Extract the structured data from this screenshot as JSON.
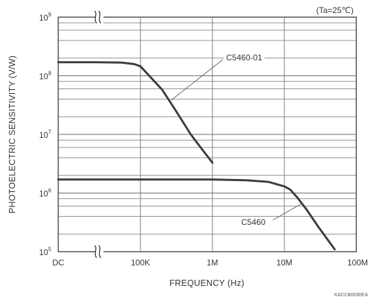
{
  "chart_data": {
    "type": "line",
    "xlabel": "FREQUENCY (Hz)",
    "ylabel": "PHOTOELECTRIC SENSITIVITY (V/W)",
    "condition": "(Ta=25℃)",
    "figure_code": "KACCB0030EA",
    "x_scale": "log",
    "y_scale": "log",
    "xlim": [
      "DC",
      100000000
    ],
    "ylim": [
      100000,
      1000000000
    ],
    "x_break": "between DC and 100K (axis break marks shown at the top and bottom edges)",
    "grid": true,
    "x_ticks": [
      {
        "value": "DC",
        "label": "DC"
      },
      {
        "value": 100000,
        "label": "100K"
      },
      {
        "value": 1000000,
        "label": "1M"
      },
      {
        "value": 10000000,
        "label": "10M"
      },
      {
        "value": 100000000,
        "label": "100M"
      }
    ],
    "y_ticks": [
      {
        "value": 100000,
        "base": "10",
        "exp": "5"
      },
      {
        "value": 1000000,
        "base": "10",
        "exp": "6"
      },
      {
        "value": 10000000,
        "base": "10",
        "exp": "7"
      },
      {
        "value": 100000000,
        "base": "10",
        "exp": "8"
      },
      {
        "value": 1000000000,
        "base": "10",
        "exp": "9"
      }
    ],
    "series": [
      {
        "name": "C5460-01",
        "x": [
          "DC",
          20000,
          50000,
          80000,
          100000,
          200000,
          300000,
          500000,
          700000,
          1000000
        ],
        "y": [
          170000000,
          170000000,
          168000000,
          158000000,
          145000000,
          58000000,
          27000000,
          10000000,
          5800000,
          3300000
        ]
      },
      {
        "name": "C5460",
        "x": [
          "DC",
          100000,
          1000000,
          3000000,
          6000000,
          10000000,
          12000000,
          15000000,
          20000000,
          30000000,
          50000000
        ],
        "y": [
          1700000,
          1700000,
          1700000,
          1650000,
          1550000,
          1300000,
          1150000,
          850000,
          540000,
          260000,
          110000
        ]
      }
    ]
  }
}
